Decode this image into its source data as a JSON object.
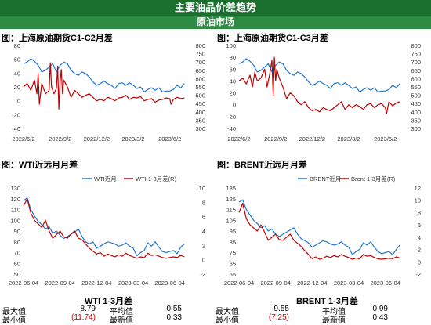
{
  "header": {
    "title": "主要油品价差趋势",
    "subtitle": "原油市场"
  },
  "colors": {
    "blue": "#1f77d4",
    "red": "#c00000",
    "green": "#1a6e2e",
    "neg": "#d00000"
  },
  "chart_data": [
    {
      "id": "p1",
      "type": "line",
      "title": "图：上海原油期货C1-C2月差",
      "x_ticks": [
        "2022/6/2",
        "2022/9/2",
        "2022/12/2",
        "2023/3/2",
        "2023/6/2"
      ],
      "x_range": [
        0,
        13.5
      ],
      "x_tick_pos": [
        0,
        3,
        6,
        9,
        12
      ],
      "y_left": {
        "min": -40,
        "max": 80,
        "ticks": [
          -40,
          -20,
          0,
          20,
          40,
          60,
          80
        ]
      },
      "y_right": {
        "min": 300,
        "max": 800,
        "ticks": [
          300,
          350,
          400,
          450,
          500,
          550,
          600,
          650,
          700,
          750,
          800
        ]
      },
      "series": [
        {
          "color": "blue",
          "axis": "right",
          "x": [
            0,
            0.3,
            0.6,
            0.9,
            1.2,
            1.5,
            1.8,
            2.1,
            2.4,
            2.7,
            3,
            3.3,
            3.6,
            3.9,
            4.2,
            4.5,
            4.8,
            5.1,
            5.4,
            5.7,
            6,
            6.3,
            6.6,
            6.9,
            7.2,
            7.5,
            7.8,
            8.1,
            8.4,
            8.7,
            9,
            9.3,
            9.6,
            9.9,
            10.2,
            10.5,
            10.8,
            11.1,
            11.4,
            11.7,
            12,
            12.3,
            12.6,
            12.9,
            13.2
          ],
          "y": [
            690,
            700,
            720,
            705,
            680,
            640,
            650,
            670,
            690,
            640,
            680,
            700,
            690,
            650,
            630,
            620,
            640,
            630,
            610,
            580,
            560,
            570,
            585,
            570,
            560,
            540,
            570,
            575,
            560,
            575,
            560,
            540,
            550,
            520,
            535,
            545,
            530,
            545,
            520,
            525,
            525,
            535,
            560,
            545,
            570
          ]
        },
        {
          "color": "red",
          "axis": "left",
          "x": [
            0,
            0.3,
            0.6,
            0.9,
            1.1,
            1.2,
            1.3,
            1.5,
            1.8,
            2.1,
            2.2,
            2.3,
            2.5,
            2.7,
            2.8,
            2.9,
            3,
            3.1,
            3.2,
            3.3,
            3.6,
            3.9,
            4.2,
            4.5,
            4.8,
            5.1,
            5.4,
            5.7,
            6,
            6.3,
            6.6,
            6.9,
            7.2,
            7.5,
            7.8,
            8.1,
            8.4,
            8.7,
            9,
            9.3,
            9.6,
            9.9,
            10.2,
            10.5,
            10.8,
            11.1,
            11.4,
            11.7,
            12,
            12.1,
            12.3,
            12.6,
            12.9,
            13.2
          ],
          "y": [
            20,
            25,
            15,
            30,
            10,
            40,
            -5,
            25,
            10,
            15,
            55,
            20,
            10,
            18,
            50,
            -12,
            28,
            45,
            10,
            30,
            20,
            5,
            15,
            10,
            5,
            8,
            10,
            5,
            0,
            2,
            0,
            5,
            3,
            0,
            4,
            5,
            8,
            2,
            5,
            4,
            6,
            0,
            2,
            3,
            -2,
            1,
            2,
            4,
            3,
            -5,
            2,
            5,
            3,
            4
          ]
        }
      ]
    },
    {
      "id": "p2",
      "type": "line",
      "title": "图：上海原油期货C1-C3月差",
      "x_ticks": [
        "2022/6/2",
        "2022/9/2",
        "2022/12/2",
        "2023/3/2",
        "2023/6/2"
      ],
      "x_range": [
        0,
        13.5
      ],
      "x_tick_pos": [
        0,
        3,
        6,
        9,
        12
      ],
      "y_left": {
        "min": -40,
        "max": 100,
        "ticks": [
          -40,
          -20,
          0,
          20,
          40,
          60,
          80,
          100
        ]
      },
      "y_right": {
        "min": 300,
        "max": 800,
        "ticks": [
          300,
          350,
          400,
          450,
          500,
          550,
          600,
          650,
          700,
          750,
          800
        ]
      },
      "series": [
        {
          "color": "blue",
          "axis": "right",
          "x": [
            0,
            0.3,
            0.6,
            0.9,
            1.2,
            1.5,
            1.8,
            2.1,
            2.4,
            2.7,
            3,
            3.3,
            3.6,
            3.9,
            4.2,
            4.5,
            4.8,
            5.1,
            5.4,
            5.7,
            6,
            6.3,
            6.6,
            6.9,
            7.2,
            7.5,
            7.8,
            8.1,
            8.4,
            8.7,
            9,
            9.3,
            9.6,
            9.9,
            10.2,
            10.5,
            10.8,
            11.1,
            11.4,
            11.7,
            12,
            12.3,
            12.6,
            12.9,
            13.2
          ],
          "y": [
            690,
            700,
            720,
            705,
            680,
            640,
            650,
            670,
            690,
            640,
            680,
            700,
            690,
            650,
            630,
            620,
            640,
            630,
            610,
            580,
            560,
            570,
            585,
            570,
            560,
            540,
            570,
            575,
            560,
            575,
            560,
            540,
            550,
            520,
            535,
            545,
            530,
            545,
            520,
            525,
            525,
            535,
            560,
            545,
            570
          ]
        },
        {
          "color": "red",
          "axis": "left",
          "x": [
            0,
            0.3,
            0.6,
            0.9,
            1.1,
            1.3,
            1.5,
            1.8,
            2.1,
            2.3,
            2.5,
            2.7,
            2.8,
            2.9,
            3,
            3.1,
            3.3,
            3.6,
            3.9,
            4.2,
            4.5,
            4.8,
            5.1,
            5.4,
            5.7,
            6,
            6.3,
            6.6,
            6.9,
            7.2,
            7.5,
            7.8,
            8.1,
            8.4,
            8.7,
            9,
            9.3,
            9.6,
            9.9,
            10.2,
            10.5,
            10.8,
            11.1,
            11.4,
            11.7,
            12,
            12.1,
            12.3,
            12.6,
            12.9,
            13.2
          ],
          "y": [
            40,
            45,
            35,
            50,
            30,
            55,
            40,
            45,
            60,
            30,
            50,
            75,
            15,
            80,
            40,
            60,
            45,
            30,
            10,
            20,
            15,
            5,
            0,
            5,
            -5,
            -10,
            -8,
            -12,
            -5,
            -8,
            -10,
            -5,
            0,
            5,
            -8,
            0,
            -5,
            0,
            -3,
            -8,
            0,
            2,
            -5,
            0,
            2,
            -5,
            -15,
            5,
            -2,
            3,
            5
          ]
        }
      ]
    },
    {
      "id": "p3",
      "type": "line",
      "title": "图：WTI近远月月差",
      "legend": [
        "WTI近月",
        "WTI 1-3月差(R)"
      ],
      "x_ticks": [
        "2022-06-04",
        "2022-09-04",
        "2022-12-04",
        "2023-03-04",
        "2023-06-04"
      ],
      "x_range": [
        0,
        13.5
      ],
      "x_tick_pos": [
        0,
        3,
        6,
        9,
        12
      ],
      "y_left": {
        "min": 50,
        "max": 130,
        "ticks": [
          50,
          60,
          70,
          80,
          90,
          100,
          110,
          120,
          130
        ]
      },
      "y_right": {
        "min": -2,
        "max": 10,
        "ticks": [
          -2,
          0,
          2,
          4,
          6,
          8,
          10
        ]
      },
      "series": [
        {
          "name": "WTI近月",
          "color": "blue",
          "axis": "left",
          "x": [
            0,
            0.3,
            0.6,
            0.9,
            1.2,
            1.5,
            1.8,
            2.1,
            2.4,
            2.7,
            3,
            3.3,
            3.6,
            3.9,
            4.2,
            4.5,
            4.8,
            5.1,
            5.4,
            5.7,
            6,
            6.3,
            6.6,
            6.9,
            7.2,
            7.5,
            7.8,
            8.1,
            8.4,
            8.7,
            9,
            9.3,
            9.6,
            9.9,
            10.2,
            10.5,
            10.8,
            11.1,
            11.4,
            11.7,
            12,
            12.3,
            12.6,
            12.9,
            13.2
          ],
          "y": [
            118,
            121,
            110,
            104,
            99,
            96,
            92,
            94,
            88,
            90,
            86,
            83,
            85,
            87,
            89,
            92,
            85,
            80,
            78,
            80,
            74,
            76,
            78,
            80,
            79,
            78,
            76,
            77,
            79,
            76,
            74,
            67,
            70,
            72,
            79,
            76,
            80,
            75,
            71,
            70,
            71,
            72,
            69,
            75,
            78
          ]
        },
        {
          "name": "WTI 1-3月差(R)",
          "color": "red",
          "axis": "right",
          "x": [
            0,
            0.3,
            0.6,
            0.9,
            1.2,
            1.5,
            1.8,
            2.1,
            2.4,
            2.7,
            3,
            3.3,
            3.6,
            3.9,
            4.2,
            4.5,
            4.8,
            5.1,
            5.4,
            5.7,
            6,
            6.3,
            6.6,
            6.9,
            7.2,
            7.5,
            7.8,
            8.1,
            8.4,
            8.7,
            9,
            9.3,
            9.6,
            9.9,
            10.2,
            10.5,
            10.8,
            11.1,
            11.4,
            11.7,
            12,
            12.3,
            12.6,
            12.9,
            13.2
          ],
          "y": [
            7.5,
            8.5,
            6.5,
            5.5,
            5,
            4.5,
            5.5,
            4,
            3,
            3.5,
            4,
            3.2,
            3,
            3.6,
            4,
            3,
            2.8,
            2.2,
            1.6,
            1.2,
            0.8,
            1.0,
            0.5,
            0.8,
            0.6,
            0.4,
            0.7,
            0.5,
            0.9,
            0.6,
            0.4,
            0.2,
            0.4,
            0.3,
            0.9,
            0.6,
            0.7,
            0.5,
            0.3,
            0.2,
            0.3,
            0.4,
            0.3,
            0.6,
            0.4
          ]
        }
      ]
    },
    {
      "id": "p4",
      "type": "line",
      "title": "图：BRENT近远月月差",
      "legend": [
        "BRENT近月",
        "Brent 1-3月差(R)"
      ],
      "x_ticks": [
        "2022-06-04",
        "2022-09-04",
        "2022-12-04",
        "2023-03-04",
        "2023-06-04"
      ],
      "x_range": [
        0,
        13.5
      ],
      "x_tick_pos": [
        0,
        3,
        6,
        9,
        12
      ],
      "y_left": {
        "min": 55,
        "max": 135,
        "ticks": [
          55,
          65,
          75,
          85,
          95,
          105,
          115,
          125,
          135
        ]
      },
      "y_right": {
        "min": -2,
        "max": 12,
        "ticks": [
          -2,
          0,
          2,
          4,
          6,
          8,
          10,
          12
        ]
      },
      "series": [
        {
          "name": "BRENT近月",
          "color": "blue",
          "axis": "left",
          "x": [
            0,
            0.3,
            0.6,
            0.9,
            1.2,
            1.5,
            1.8,
            2.1,
            2.4,
            2.7,
            3,
            3.3,
            3.6,
            3.9,
            4.2,
            4.5,
            4.8,
            5.1,
            5.4,
            5.7,
            6,
            6.3,
            6.6,
            6.9,
            7.2,
            7.5,
            7.8,
            8.1,
            8.4,
            8.7,
            9,
            9.3,
            9.6,
            9.9,
            10.2,
            10.5,
            10.8,
            11.1,
            11.4,
            11.7,
            12,
            12.3,
            12.6,
            12.9,
            13.2
          ],
          "y": [
            122,
            124,
            115,
            110,
            105,
            102,
            98,
            100,
            95,
            97,
            92,
            90,
            92,
            94,
            96,
            98,
            92,
            88,
            86,
            84,
            80,
            82,
            84,
            86,
            85,
            83,
            82,
            83,
            85,
            82,
            80,
            73,
            76,
            78,
            84,
            82,
            85,
            80,
            76,
            74,
            75,
            76,
            73,
            78,
            82
          ]
        },
        {
          "name": "Brent 1-3月差(R)",
          "color": "red",
          "axis": "right",
          "x": [
            0,
            0.3,
            0.6,
            0.9,
            1.2,
            1.5,
            1.8,
            2.1,
            2.4,
            2.7,
            3,
            3.3,
            3.6,
            3.9,
            4.2,
            4.5,
            4.8,
            5.1,
            5.4,
            5.7,
            6,
            6.3,
            6.6,
            6.9,
            7.2,
            7.5,
            7.8,
            8.1,
            8.4,
            8.7,
            9,
            9.3,
            9.6,
            9.9,
            10.2,
            10.5,
            10.8,
            11.1,
            11.4,
            11.7,
            12,
            12.3,
            12.6,
            12.9,
            13.2
          ],
          "y": [
            8,
            9.5,
            7,
            6,
            5.5,
            5,
            6,
            4.8,
            3.5,
            4,
            4.5,
            3.6,
            3.5,
            4,
            4.5,
            3.5,
            3,
            2.5,
            1.8,
            1.2,
            0.5,
            0.8,
            0.4,
            0.6,
            0.9,
            0.7,
            1.0,
            0.8,
            1.2,
            0.9,
            0.7,
            0.4,
            0.6,
            0.5,
            1.2,
            0.9,
            1.0,
            0.7,
            0.5,
            0.4,
            0.5,
            0.6,
            0.5,
            0.8,
            0.6
          ]
        }
      ]
    }
  ],
  "stats": [
    {
      "title": "WTI 1-3月差",
      "max_label": "最大值",
      "max": "8.79",
      "avg_label": "平均值",
      "avg": "0.55",
      "min_label": "最小值",
      "min": "(11.74)",
      "latest_label": "最新值",
      "latest": "0.33"
    },
    {
      "title": "BRENT 1-3月差",
      "max_label": "最大值",
      "max": "9.55",
      "avg_label": "平均值",
      "avg": "0.99",
      "min_label": "最小值",
      "min": "(7.25)",
      "latest_label": "最新值",
      "latest": "0.43"
    }
  ]
}
